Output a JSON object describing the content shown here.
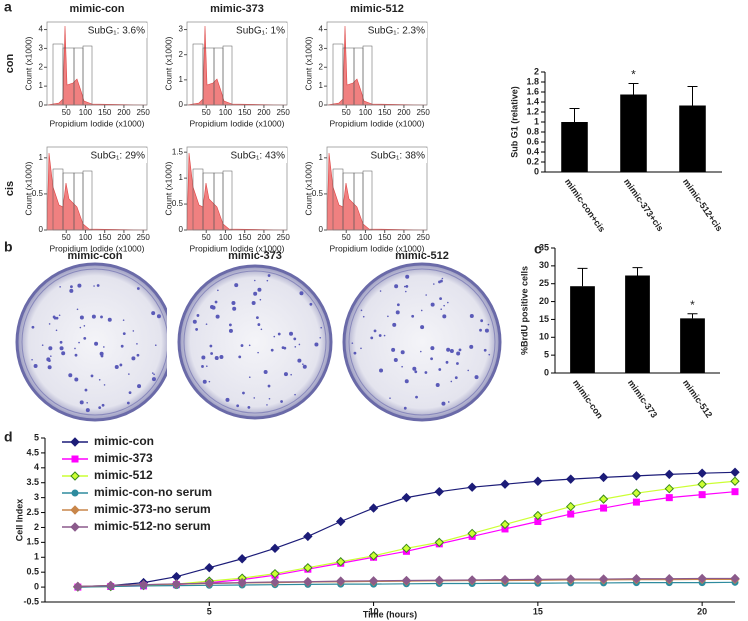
{
  "panel_labels": [
    "a",
    "b",
    "c",
    "d"
  ],
  "flow": {
    "columns": [
      "mimic-con",
      "mimic-373",
      "mimic-512"
    ],
    "rows": [
      "con",
      "cis"
    ],
    "xlabel": "Propidium Iodide (x1000)",
    "ylabel": "Count (x1000)",
    "xlim": [
      0,
      260
    ],
    "xticks": [
      50,
      100,
      150,
      200,
      250
    ],
    "panels": [
      [
        {
          "subg1": "SubG₁: 3.6%",
          "ylim": [
            0,
            4.4
          ],
          "yticks": [
            0,
            1,
            2,
            3,
            4
          ]
        },
        {
          "subg1": "SubG₁: 1%",
          "ylim": [
            0,
            3.3
          ],
          "yticks": [
            0,
            1,
            2,
            3
          ]
        },
        {
          "subg1": "SubG₁: 2.3%",
          "ylim": [
            0,
            4.4
          ],
          "yticks": [
            0,
            1,
            2,
            3,
            4
          ]
        }
      ],
      [
        {
          "subg1": "SubG₁: 29%",
          "ylim": [
            0,
            1.15
          ],
          "yticks": [
            0,
            0.5,
            1
          ]
        },
        {
          "subg1": "SubG₁: 43%",
          "ylim": [
            0,
            1.6
          ],
          "yticks": [
            0,
            0.5,
            1,
            1.5
          ]
        },
        {
          "subg1": "SubG₁: 38%",
          "ylim": [
            0,
            1.15
          ],
          "yticks": [
            0,
            0.5,
            1
          ]
        }
      ]
    ]
  },
  "colonies": {
    "titles": [
      "mimic-con",
      "mimic-373",
      "mimic-512"
    ]
  },
  "chart_data": [
    {
      "type": "bar",
      "ylabel": "Sub G1 (relative)",
      "categories": [
        "mimic-con+cis",
        "mimic-373+cis",
        "mimic-512+cis"
      ],
      "values": [
        1.0,
        1.55,
        1.33
      ],
      "errors": [
        0.27,
        0.22,
        0.38
      ],
      "color": "#000000",
      "ylim": [
        0,
        2
      ],
      "yticks": [
        0,
        0.2,
        0.4,
        0.6,
        0.8,
        1,
        1.2,
        1.4,
        1.6,
        1.8,
        2
      ],
      "annotations": [
        {
          "text": "*",
          "category": "mimic-373+cis"
        }
      ]
    },
    {
      "type": "bar",
      "ylabel": "%BrdU positive cells",
      "categories": [
        "mimic-con",
        "mimic-373",
        "mimic-512"
      ],
      "values": [
        24.3,
        27.3,
        15.3
      ],
      "errors": [
        5,
        2.2,
        1.3
      ],
      "color": "#000000",
      "ylim": [
        0,
        35
      ],
      "yticks": [
        0,
        5,
        10,
        15,
        20,
        25,
        30,
        35
      ],
      "annotations": [
        {
          "text": "*",
          "category": "mimic-512"
        }
      ]
    },
    {
      "type": "line",
      "xlabel": "Time (hours)",
      "ylabel": "Cell Index",
      "xlim": [
        0,
        21
      ],
      "xticks": [
        5,
        10,
        15,
        20
      ],
      "ylim": [
        -0.5,
        5
      ],
      "yticks": [
        -0.5,
        0,
        0.5,
        1,
        1.5,
        2,
        2.5,
        3,
        3.5,
        4,
        4.5,
        5
      ],
      "legend": "upper left",
      "x": [
        1,
        2,
        3,
        4,
        5,
        6,
        7,
        8,
        9,
        10,
        11,
        12,
        13,
        14,
        15,
        16,
        17,
        18,
        19,
        20,
        21
      ],
      "series": [
        {
          "name": "mimic-con",
          "color": "#1c1c78",
          "marker": "diamond",
          "values": [
            0.02,
            0.05,
            0.15,
            0.35,
            0.65,
            0.95,
            1.3,
            1.7,
            2.2,
            2.65,
            3.0,
            3.2,
            3.35,
            3.45,
            3.55,
            3.62,
            3.68,
            3.73,
            3.78,
            3.82,
            3.85
          ]
        },
        {
          "name": "mimic-373",
          "color": "#ff00ff",
          "marker": "square",
          "values": [
            0,
            0.02,
            0.04,
            0.08,
            0.15,
            0.25,
            0.4,
            0.6,
            0.8,
            1.0,
            1.2,
            1.45,
            1.7,
            1.95,
            2.2,
            2.45,
            2.65,
            2.85,
            3.0,
            3.1,
            3.2
          ]
        },
        {
          "name": "mimic-512",
          "color": "#ccff33",
          "marker": "diamond",
          "values": [
            0,
            0.02,
            0.05,
            0.1,
            0.2,
            0.3,
            0.45,
            0.65,
            0.85,
            1.05,
            1.3,
            1.5,
            1.8,
            2.1,
            2.4,
            2.7,
            2.95,
            3.15,
            3.3,
            3.45,
            3.55
          ]
        },
        {
          "name": "mimic-con-no serum",
          "color": "#2e8b9e",
          "marker": "circle",
          "values": [
            0,
            0.02,
            0.04,
            0.05,
            0.06,
            0.07,
            0.08,
            0.09,
            0.1,
            0.1,
            0.11,
            0.12,
            0.12,
            0.13,
            0.13,
            0.14,
            0.14,
            0.15,
            0.15,
            0.15,
            0.16
          ]
        },
        {
          "name": "mimic-373-no serum",
          "color": "#c8864a",
          "marker": "diamond",
          "values": [
            0.02,
            0.05,
            0.08,
            0.1,
            0.12,
            0.14,
            0.15,
            0.17,
            0.18,
            0.19,
            0.2,
            0.21,
            0.22,
            0.22,
            0.23,
            0.24,
            0.24,
            0.25,
            0.25,
            0.26,
            0.26
          ]
        },
        {
          "name": "mimic-512-no serum",
          "color": "#8b5a8b",
          "marker": "diamond",
          "values": [
            0.02,
            0.05,
            0.08,
            0.11,
            0.13,
            0.15,
            0.17,
            0.18,
            0.2,
            0.21,
            0.22,
            0.23,
            0.24,
            0.25,
            0.26,
            0.27,
            0.27,
            0.28,
            0.28,
            0.29,
            0.29
          ]
        }
      ]
    }
  ]
}
